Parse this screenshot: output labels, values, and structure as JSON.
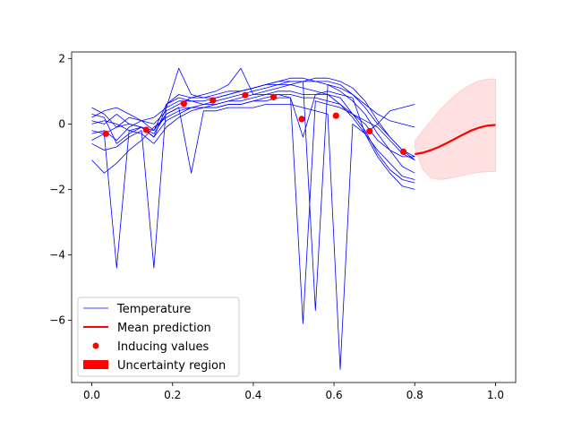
{
  "chart_data": {
    "type": "line",
    "title": "",
    "xlabel": "",
    "ylabel": "",
    "xlim": [
      -0.05,
      1.05
    ],
    "ylim": [
      -7.9,
      2.2
    ],
    "grid": false,
    "legend_position": "lower-left",
    "x_ticks": [
      {
        "value": 0.0,
        "label": "0.0"
      },
      {
        "value": 0.2,
        "label": "0.2"
      },
      {
        "value": 0.4,
        "label": "0.4"
      },
      {
        "value": 0.6,
        "label": "0.6"
      },
      {
        "value": 0.8,
        "label": "0.8"
      },
      {
        "value": 1.0,
        "label": "1.0"
      }
    ],
    "y_ticks": [
      {
        "value": 2,
        "label": "2"
      },
      {
        "value": 0,
        "label": "0"
      },
      {
        "value": -2,
        "label": "−2"
      },
      {
        "value": -4,
        "label": "−4"
      },
      {
        "value": -6,
        "label": "−6"
      }
    ],
    "colors": {
      "temperature": "#0000ff",
      "mean": "#ff0000",
      "inducing": "#ff0000",
      "uncertainty": "#ff0000"
    },
    "legend": {
      "temperature": "Temperature",
      "mean": "Mean prediction",
      "inducing": "Inducing values",
      "uncertainty": "Uncertainty region"
    },
    "temperature_x": [
      0.0,
      0.0308,
      0.0615,
      0.0923,
      0.1231,
      0.1538,
      0.1846,
      0.2154,
      0.2462,
      0.2769,
      0.3077,
      0.3385,
      0.3692,
      0.4,
      0.4308,
      0.4615,
      0.4923,
      0.5231,
      0.5538,
      0.5846,
      0.6154,
      0.6462,
      0.6769,
      0.7077,
      0.7385,
      0.7692,
      0.8
    ],
    "temperature_series": [
      [
        0.5,
        0.3,
        -0.1,
        0.2,
        0.1,
        -0.2,
        0.6,
        0.8,
        0.7,
        0.6,
        0.7,
        0.8,
        0.9,
        1.0,
        1.1,
        1.2,
        1.2,
        1.1,
        1.0,
        0.9,
        0.6,
        0.3,
        0.0,
        -0.5,
        -0.8,
        -1.0,
        -1.0
      ],
      [
        -1.1,
        -1.5,
        -1.2,
        -0.8,
        -0.5,
        -0.1,
        0.2,
        0.4,
        0.5,
        0.5,
        0.6,
        0.7,
        0.8,
        0.9,
        1.0,
        1.1,
        1.2,
        1.3,
        1.3,
        1.2,
        1.0,
        0.7,
        0.3,
        -0.3,
        -0.8,
        -1.3,
        -1.5
      ],
      [
        -0.3,
        -0.2,
        -0.5,
        -0.1,
        0.1,
        0.2,
        0.5,
        1.7,
        0.9,
        0.8,
        0.8,
        0.9,
        1.0,
        1.1,
        1.2,
        1.3,
        1.3,
        1.3,
        1.4,
        1.4,
        1.3,
        1.1,
        0.7,
        0.1,
        -0.4,
        -0.8,
        -1.0
      ],
      [
        -0.2,
        -0.3,
        -0.1,
        0.0,
        -0.1,
        -0.4,
        0.1,
        0.3,
        0.5,
        0.6,
        0.6,
        0.7,
        0.7,
        0.8,
        0.9,
        1.0,
        1.0,
        0.9,
        0.9,
        0.9,
        0.8,
        0.3,
        -0.2,
        -0.9,
        -1.4,
        -1.7,
        -1.8
      ],
      [
        0.0,
        0.1,
        0.0,
        -0.2,
        -0.3,
        -0.6,
        -0.1,
        0.2,
        0.4,
        0.5,
        0.5,
        0.6,
        0.6,
        0.7,
        0.8,
        0.9,
        0.9,
        0.8,
        0.8,
        0.7,
        0.6,
        0.2,
        -0.3,
        -1.0,
        -1.5,
        -1.9,
        -2.0
      ],
      [
        0.3,
        0.2,
        -0.6,
        -0.3,
        -0.1,
        -0.4,
        0.5,
        0.7,
        0.7,
        0.7,
        0.8,
        0.9,
        1.0,
        1.1,
        1.2,
        1.3,
        1.4,
        1.4,
        1.3,
        1.3,
        1.2,
        0.9,
        0.5,
        0.0,
        -0.4,
        -0.8,
        -1.1
      ],
      [
        -0.5,
        -0.3,
        -4.4,
        -0.2,
        -0.1,
        -0.3,
        0.3,
        0.5,
        0.5,
        0.5,
        0.5,
        0.6,
        0.6,
        0.7,
        0.7,
        0.8,
        0.8,
        -6.1,
        0.7,
        0.6,
        0.5,
        0.3,
        0.1,
        -0.1,
        -0.5,
        -0.9,
        -1.1
      ],
      [
        -0.6,
        -0.8,
        -0.7,
        -0.4,
        -0.2,
        -4.4,
        0.6,
        0.9,
        0.8,
        0.8,
        0.9,
        1.0,
        1.0,
        1.1,
        1.2,
        1.2,
        1.3,
        1.3,
        -5.7,
        1.2,
        1.1,
        0.9,
        0.6,
        0.3,
        0.1,
        0.0,
        -0.1
      ],
      [
        0.1,
        0.0,
        0.3,
        0.0,
        -0.1,
        -0.2,
        0.3,
        0.5,
        -1.5,
        0.4,
        0.4,
        0.5,
        0.5,
        0.5,
        0.6,
        0.6,
        0.6,
        0.5,
        0.4,
        0.3,
        -7.5,
        0.0,
        -0.3,
        -0.8,
        -1.2,
        -1.6,
        -1.7
      ],
      [
        0.2,
        0.4,
        0.5,
        0.3,
        0.1,
        0.0,
        0.4,
        0.6,
        0.8,
        0.9,
        1.0,
        1.2,
        1.7,
        0.9,
        0.9,
        0.9,
        0.8,
        -0.4,
        0.9,
        1.0,
        0.9,
        0.8,
        -0.3,
        0.0,
        0.4,
        0.5,
        0.6
      ]
    ],
    "mean_prediction": {
      "x": [
        0.8,
        0.82,
        0.84,
        0.86,
        0.88,
        0.9,
        0.92,
        0.94,
        0.96,
        0.98,
        1.0
      ],
      "y": [
        -0.92,
        -0.88,
        -0.8,
        -0.7,
        -0.58,
        -0.45,
        -0.32,
        -0.2,
        -0.11,
        -0.05,
        -0.03
      ],
      "lower": [
        -0.72,
        -1.4,
        -1.65,
        -1.7,
        -1.68,
        -1.63,
        -1.57,
        -1.52,
        -1.48,
        -1.46,
        -1.45
      ],
      "upper": [
        -0.52,
        -0.2,
        0.1,
        0.4,
        0.65,
        0.88,
        1.07,
        1.22,
        1.32,
        1.37,
        1.38
      ]
    },
    "inducing_values": {
      "x": [
        0.035,
        0.135,
        0.228,
        0.3,
        0.38,
        0.45,
        0.52,
        0.605,
        0.688,
        0.772
      ],
      "y": [
        -0.3,
        -0.18,
        0.62,
        0.72,
        0.88,
        0.82,
        0.15,
        0.25,
        -0.22,
        -0.85
      ]
    }
  }
}
